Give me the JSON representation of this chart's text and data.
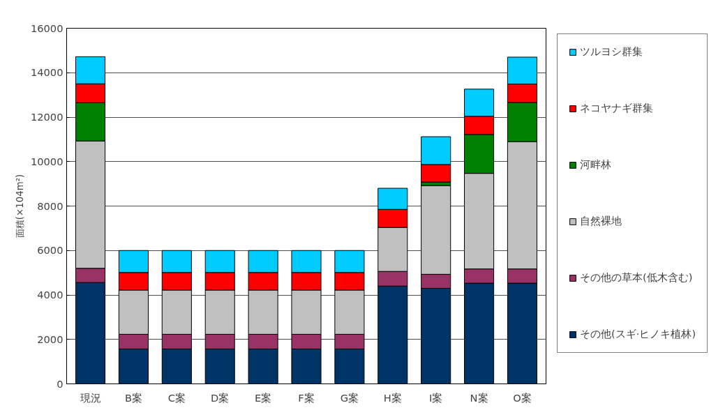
{
  "chart_data": {
    "type": "bar",
    "stacked": true,
    "ylabel": "面積(×104m²)",
    "categories": [
      "現況",
      "B案",
      "C案",
      "D案",
      "E案",
      "F案",
      "G案",
      "H案",
      "I案",
      "N案",
      "O案"
    ],
    "series": [
      {
        "name": "その他(スギ·ヒノキ植林)",
        "color": "#003366",
        "values": [
          4560,
          1570,
          1570,
          1570,
          1570,
          1570,
          1570,
          4400,
          4300,
          4530,
          4530
        ]
      },
      {
        "name": "その他の草本(低木含む)",
        "color": "#993366",
        "values": [
          640,
          660,
          660,
          660,
          660,
          660,
          660,
          660,
          630,
          640,
          640
        ]
      },
      {
        "name": "自然裸地",
        "color": "#c0c0c0",
        "values": [
          5730,
          1990,
          1990,
          1990,
          1990,
          1990,
          1990,
          1980,
          3990,
          4300,
          5730
        ]
      },
      {
        "name": "河畔林",
        "color": "#008000",
        "values": [
          1720,
          0,
          0,
          0,
          0,
          0,
          0,
          0,
          160,
          1750,
          1760
        ]
      },
      {
        "name": "ネコヤナギ群集",
        "color": "#ff0000",
        "values": [
          850,
          790,
          790,
          790,
          790,
          790,
          790,
          810,
          790,
          820,
          830
        ]
      },
      {
        "name": "ツルヨシ群集",
        "color": "#00ccff",
        "values": [
          1220,
          990,
          990,
          990,
          990,
          990,
          990,
          950,
          1250,
          1220,
          1210
        ]
      }
    ],
    "ylim": [
      0,
      16000
    ],
    "yticks": [
      0,
      2000,
      4000,
      6000,
      8000,
      10000,
      12000,
      14000,
      16000
    ],
    "grid": "y",
    "legend": "right"
  }
}
